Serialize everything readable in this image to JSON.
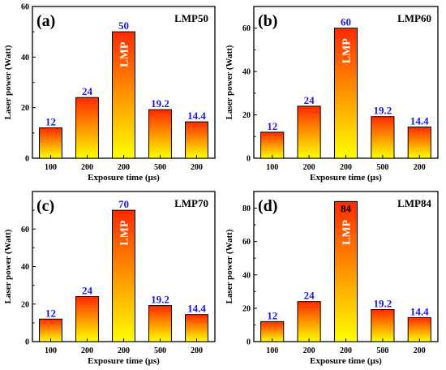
{
  "colors": {
    "bar_top": "#ff2a00",
    "bar_mid": "#ff8a00",
    "bar_bottom": "#ffff00",
    "value_label": "#1a1adb",
    "axis": "#000000",
    "lmp_text": "#ffffff"
  },
  "chart_data": [
    {
      "type": "bar",
      "panel": "(a)",
      "title": "LMP50",
      "xlabel": "Exposure time (µs)",
      "ylabel": "Laser power (Watt)",
      "categories": [
        "100",
        "200",
        "200",
        "500",
        "200"
      ],
      "values": [
        12,
        24,
        50,
        19.2,
        14.4
      ],
      "value_labels": [
        "12",
        "24",
        "50",
        "19.2",
        "14.4"
      ],
      "yticks": [
        0,
        20,
        40,
        60
      ],
      "ylim": [
        0,
        60
      ],
      "highlight_index": 2,
      "highlight_label": "LMP"
    },
    {
      "type": "bar",
      "panel": "(b)",
      "title": "LMP60",
      "xlabel": "Exposure time (µs)",
      "ylabel": "Laser power (Watt)",
      "categories": [
        "100",
        "200",
        "200",
        "500",
        "200"
      ],
      "values": [
        12,
        24,
        60,
        19.2,
        14.4
      ],
      "value_labels": [
        "12",
        "24",
        "60",
        "19.2",
        "14.4"
      ],
      "yticks": [
        0,
        20,
        40,
        60
      ],
      "ylim": [
        0,
        70
      ],
      "highlight_index": 2,
      "highlight_label": "LMP"
    },
    {
      "type": "bar",
      "panel": "(c)",
      "title": "LMP70",
      "xlabel": "Exposure time (µs)",
      "ylabel": "Laser power (Watt)",
      "categories": [
        "100",
        "200",
        "200",
        "500",
        "200"
      ],
      "values": [
        12,
        24,
        70,
        19.2,
        14.4
      ],
      "value_labels": [
        "12",
        "24",
        "70",
        "19.2",
        "14.4"
      ],
      "yticks": [
        0,
        20,
        40,
        60
      ],
      "ylim": [
        0,
        80
      ],
      "highlight_index": 2,
      "highlight_label": "LMP"
    },
    {
      "type": "bar",
      "panel": "(d)",
      "title": "LMP84",
      "xlabel": "Exposure time (µs)",
      "ylabel": "Laser power (Watt)",
      "categories": [
        "100",
        "200",
        "200",
        "500",
        "200"
      ],
      "values": [
        12,
        24,
        84,
        19.2,
        14.4
      ],
      "value_labels": [
        "12",
        "24",
        "84",
        "19.2",
        "14.4"
      ],
      "yticks": [
        0,
        20,
        40,
        60,
        80
      ],
      "ylim": [
        0,
        90
      ],
      "highlight_index": 2,
      "highlight_label": "LMP"
    }
  ]
}
